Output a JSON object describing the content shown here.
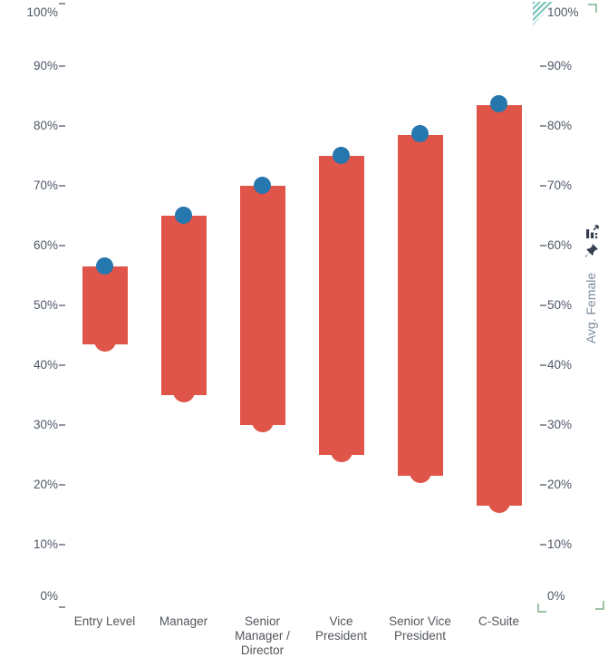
{
  "chart_data": {
    "type": "bar",
    "subtype": "floating-range-columns-with-endpoint-dots",
    "title": "",
    "categories": [
      "Entry Level",
      "Manager",
      "Senior Manager / Director",
      "Vice President",
      "Senior Vice President",
      "C-Suite"
    ],
    "category_label_lines": [
      [
        "Entry Level"
      ],
      [
        "Manager"
      ],
      [
        "Senior",
        "Manager /",
        "Director"
      ],
      [
        "Vice",
        "President"
      ],
      [
        "Senior Vice",
        "President"
      ],
      [
        "C-Suite"
      ]
    ],
    "series": [
      {
        "name": "upper_value_blue_dot",
        "values": [
          56.5,
          65,
          70,
          75,
          78.5,
          83.5
        ]
      },
      {
        "name": "lower_value_red_dot",
        "values": [
          43.5,
          35,
          30,
          25,
          21.5,
          16.5
        ]
      }
    ],
    "left_axis": {
      "min": 0,
      "max": 100,
      "step": 10,
      "tick_labels": [
        "0%",
        "10%",
        "20%",
        "30%",
        "40%",
        "50%",
        "60%",
        "70%",
        "80%",
        "90%",
        "100%"
      ]
    },
    "right_axis": {
      "min": 0,
      "max": 100,
      "step": 10,
      "tick_labels": [
        "0%",
        "10%",
        "20%",
        "30%",
        "40%",
        "50%",
        "60%",
        "70%",
        "80%",
        "90%",
        "100%"
      ],
      "title": "Avg. Female"
    },
    "grid": false,
    "legend": "none"
  },
  "colors": {
    "bar": "#e0554a",
    "dot_upper": "#2577ae",
    "dot_lower": "#e0554a",
    "axis_text": "#4e5866",
    "axis_tick": "#8f959c",
    "category_text": "#53575c",
    "right_axis_title_text": "#7e8b99",
    "header_icon": "#343f4f",
    "flag_triangle": "#7fc6bd",
    "corner_bracket": "#9ec3a6",
    "background": "#ffffff"
  },
  "icons": {
    "flag": "hatched-triangle-indicator",
    "insights": "column-chart-with-arrow",
    "pin": "pushpin",
    "corners": "resize-corner-brackets"
  }
}
